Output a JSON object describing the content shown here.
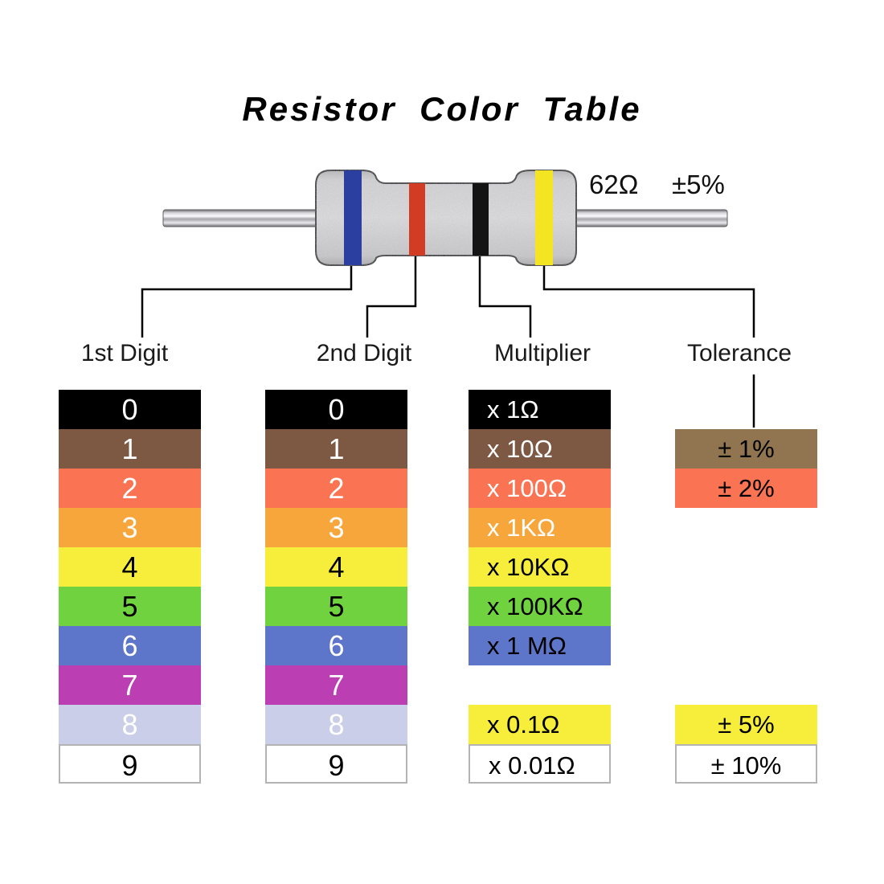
{
  "title": "Resistor Color Table",
  "resistor": {
    "value_label": "62Ω",
    "tolerance_label": "±5%",
    "body_color": "#d9d9db",
    "bands": [
      {
        "position": "1st-digit",
        "color_name": "blue",
        "hex": "#2b3fa0"
      },
      {
        "position": "2nd-digit",
        "color_name": "red",
        "hex": "#d23b24"
      },
      {
        "position": "multiplier",
        "color_name": "black",
        "hex": "#141414"
      },
      {
        "position": "tolerance",
        "color_name": "yellow",
        "hex": "#f4e522"
      }
    ]
  },
  "columns": [
    {
      "id": "first-digit",
      "header": "1st Digit",
      "align": "center",
      "rows": [
        {
          "label": "0",
          "color_name": "black",
          "bg": "#000000",
          "fg": "#ffffff",
          "slot": 0
        },
        {
          "label": "1",
          "color_name": "brown",
          "bg": "#7d5843",
          "fg": "#ffffff",
          "slot": 1
        },
        {
          "label": "2",
          "color_name": "red",
          "bg": "#fa7352",
          "fg": "#ffffff",
          "slot": 2
        },
        {
          "label": "3",
          "color_name": "orange",
          "bg": "#f7a63c",
          "fg": "#ffffff",
          "slot": 3
        },
        {
          "label": "4",
          "color_name": "yellow",
          "bg": "#f7ee3b",
          "fg": "#000000",
          "slot": 4
        },
        {
          "label": "5",
          "color_name": "green",
          "bg": "#71d23f",
          "fg": "#000000",
          "slot": 5
        },
        {
          "label": "6",
          "color_name": "blue",
          "bg": "#5d76c9",
          "fg": "#ffffff",
          "slot": 6
        },
        {
          "label": "7",
          "color_name": "violet",
          "bg": "#bb3eb2",
          "fg": "#ffffff",
          "slot": 7
        },
        {
          "label": "8",
          "color_name": "gray",
          "bg": "#cbcee9",
          "fg": "#ffffff",
          "slot": 8
        },
        {
          "label": "9",
          "color_name": "white",
          "bg": "#ffffff",
          "fg": "#000000",
          "slot": 9,
          "border": true
        }
      ]
    },
    {
      "id": "second-digit",
      "header": "2nd Digit",
      "align": "center",
      "rows": [
        {
          "label": "0",
          "color_name": "black",
          "bg": "#000000",
          "fg": "#ffffff",
          "slot": 0
        },
        {
          "label": "1",
          "color_name": "brown",
          "bg": "#7d5843",
          "fg": "#ffffff",
          "slot": 1
        },
        {
          "label": "2",
          "color_name": "red",
          "bg": "#fa7352",
          "fg": "#ffffff",
          "slot": 2
        },
        {
          "label": "3",
          "color_name": "orange",
          "bg": "#f7a63c",
          "fg": "#ffffff",
          "slot": 3
        },
        {
          "label": "4",
          "color_name": "yellow",
          "bg": "#f7ee3b",
          "fg": "#000000",
          "slot": 4
        },
        {
          "label": "5",
          "color_name": "green",
          "bg": "#71d23f",
          "fg": "#000000",
          "slot": 5
        },
        {
          "label": "6",
          "color_name": "blue",
          "bg": "#5d76c9",
          "fg": "#ffffff",
          "slot": 6
        },
        {
          "label": "7",
          "color_name": "violet",
          "bg": "#bb3eb2",
          "fg": "#ffffff",
          "slot": 7
        },
        {
          "label": "8",
          "color_name": "gray",
          "bg": "#cbcee9",
          "fg": "#ffffff",
          "slot": 8
        },
        {
          "label": "9",
          "color_name": "white",
          "bg": "#ffffff",
          "fg": "#000000",
          "slot": 9,
          "border": true
        }
      ]
    },
    {
      "id": "multiplier",
      "header": "Multiplier",
      "align": "left",
      "rows": [
        {
          "label": "x 1Ω",
          "color_name": "black",
          "bg": "#000000",
          "fg": "#ffffff",
          "slot": 0
        },
        {
          "label": "x 10Ω",
          "color_name": "brown",
          "bg": "#7d5843",
          "fg": "#ffffff",
          "slot": 1
        },
        {
          "label": "x 100Ω",
          "color_name": "red",
          "bg": "#fa7352",
          "fg": "#ffffff",
          "slot": 2
        },
        {
          "label": "x 1KΩ",
          "color_name": "orange",
          "bg": "#f7a63c",
          "fg": "#ffffff",
          "slot": 3
        },
        {
          "label": "x 10KΩ",
          "color_name": "yellow",
          "bg": "#f7ee3b",
          "fg": "#000000",
          "slot": 4
        },
        {
          "label": "x 100KΩ",
          "color_name": "green",
          "bg": "#71d23f",
          "fg": "#000000",
          "slot": 5
        },
        {
          "label": "x 1 MΩ",
          "color_name": "blue",
          "bg": "#5d76c9",
          "fg": "#000000",
          "slot": 6
        },
        {
          "label": "x 0.1Ω",
          "color_name": "yellow",
          "bg": "#f7ee3b",
          "fg": "#000000",
          "slot": 8
        },
        {
          "label": "x 0.01Ω",
          "color_name": "white",
          "bg": "#ffffff",
          "fg": "#000000",
          "slot": 9,
          "border": true
        }
      ]
    },
    {
      "id": "tolerance",
      "header": "Tolerance",
      "align": "center",
      "rows": [
        {
          "label": "± 1%",
          "color_name": "brown",
          "bg": "#917450",
          "fg": "#000000",
          "slot": 1
        },
        {
          "label": "± 2%",
          "color_name": "red",
          "bg": "#fa7352",
          "fg": "#000000",
          "slot": 2
        },
        {
          "label": "± 5%",
          "color_name": "yellow",
          "bg": "#f7ee3b",
          "fg": "#000000",
          "slot": 8
        },
        {
          "label": "± 10%",
          "color_name": "white",
          "bg": "#ffffff",
          "fg": "#000000",
          "slot": 9,
          "border": true
        }
      ]
    }
  ]
}
